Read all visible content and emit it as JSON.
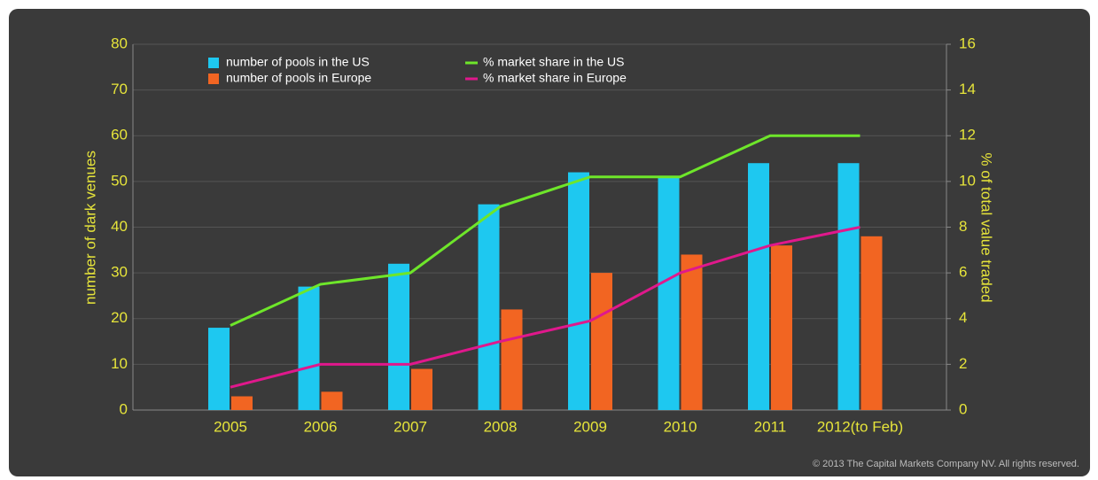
{
  "chart_data": {
    "type": "bar",
    "categories": [
      "2005",
      "2006",
      "2007",
      "2008",
      "2009",
      "2010",
      "2011",
      "2012(to Feb)"
    ],
    "y_label": "number of dark venues",
    "y2_label": "% of total value traded",
    "ylim": [
      0,
      80
    ],
    "yticks": [
      0,
      10,
      20,
      30,
      40,
      50,
      60,
      70,
      80
    ],
    "y2lim": [
      0,
      16
    ],
    "y2ticks": [
      0,
      2,
      4,
      6,
      8,
      10,
      12,
      14,
      16
    ],
    "grid": true,
    "series": [
      {
        "name": "number of pools in the US",
        "color": "#1ec8f0",
        "values": [
          18,
          27,
          32,
          45,
          52,
          51,
          54,
          54
        ]
      },
      {
        "name": "number of pools in Europe",
        "color": "#f26522",
        "values": [
          3,
          4,
          9,
          22,
          30,
          34,
          36,
          38
        ]
      },
      {
        "name": "% market share in the US",
        "color": "#6ee62a",
        "type": "line",
        "axis": "y2",
        "values": [
          3.7,
          5.5,
          6.0,
          8.9,
          10.2,
          10.2,
          12,
          12
        ]
      },
      {
        "name": "% market share in Europe",
        "color": "#e0188c",
        "type": "line",
        "axis": "y2",
        "values": [
          1.0,
          2.0,
          2.0,
          3.0,
          3.9,
          6.0,
          7.2,
          8.0
        ]
      }
    ],
    "copyright": "© 2013 The Capital Markets Company NV. All rights reserved."
  }
}
